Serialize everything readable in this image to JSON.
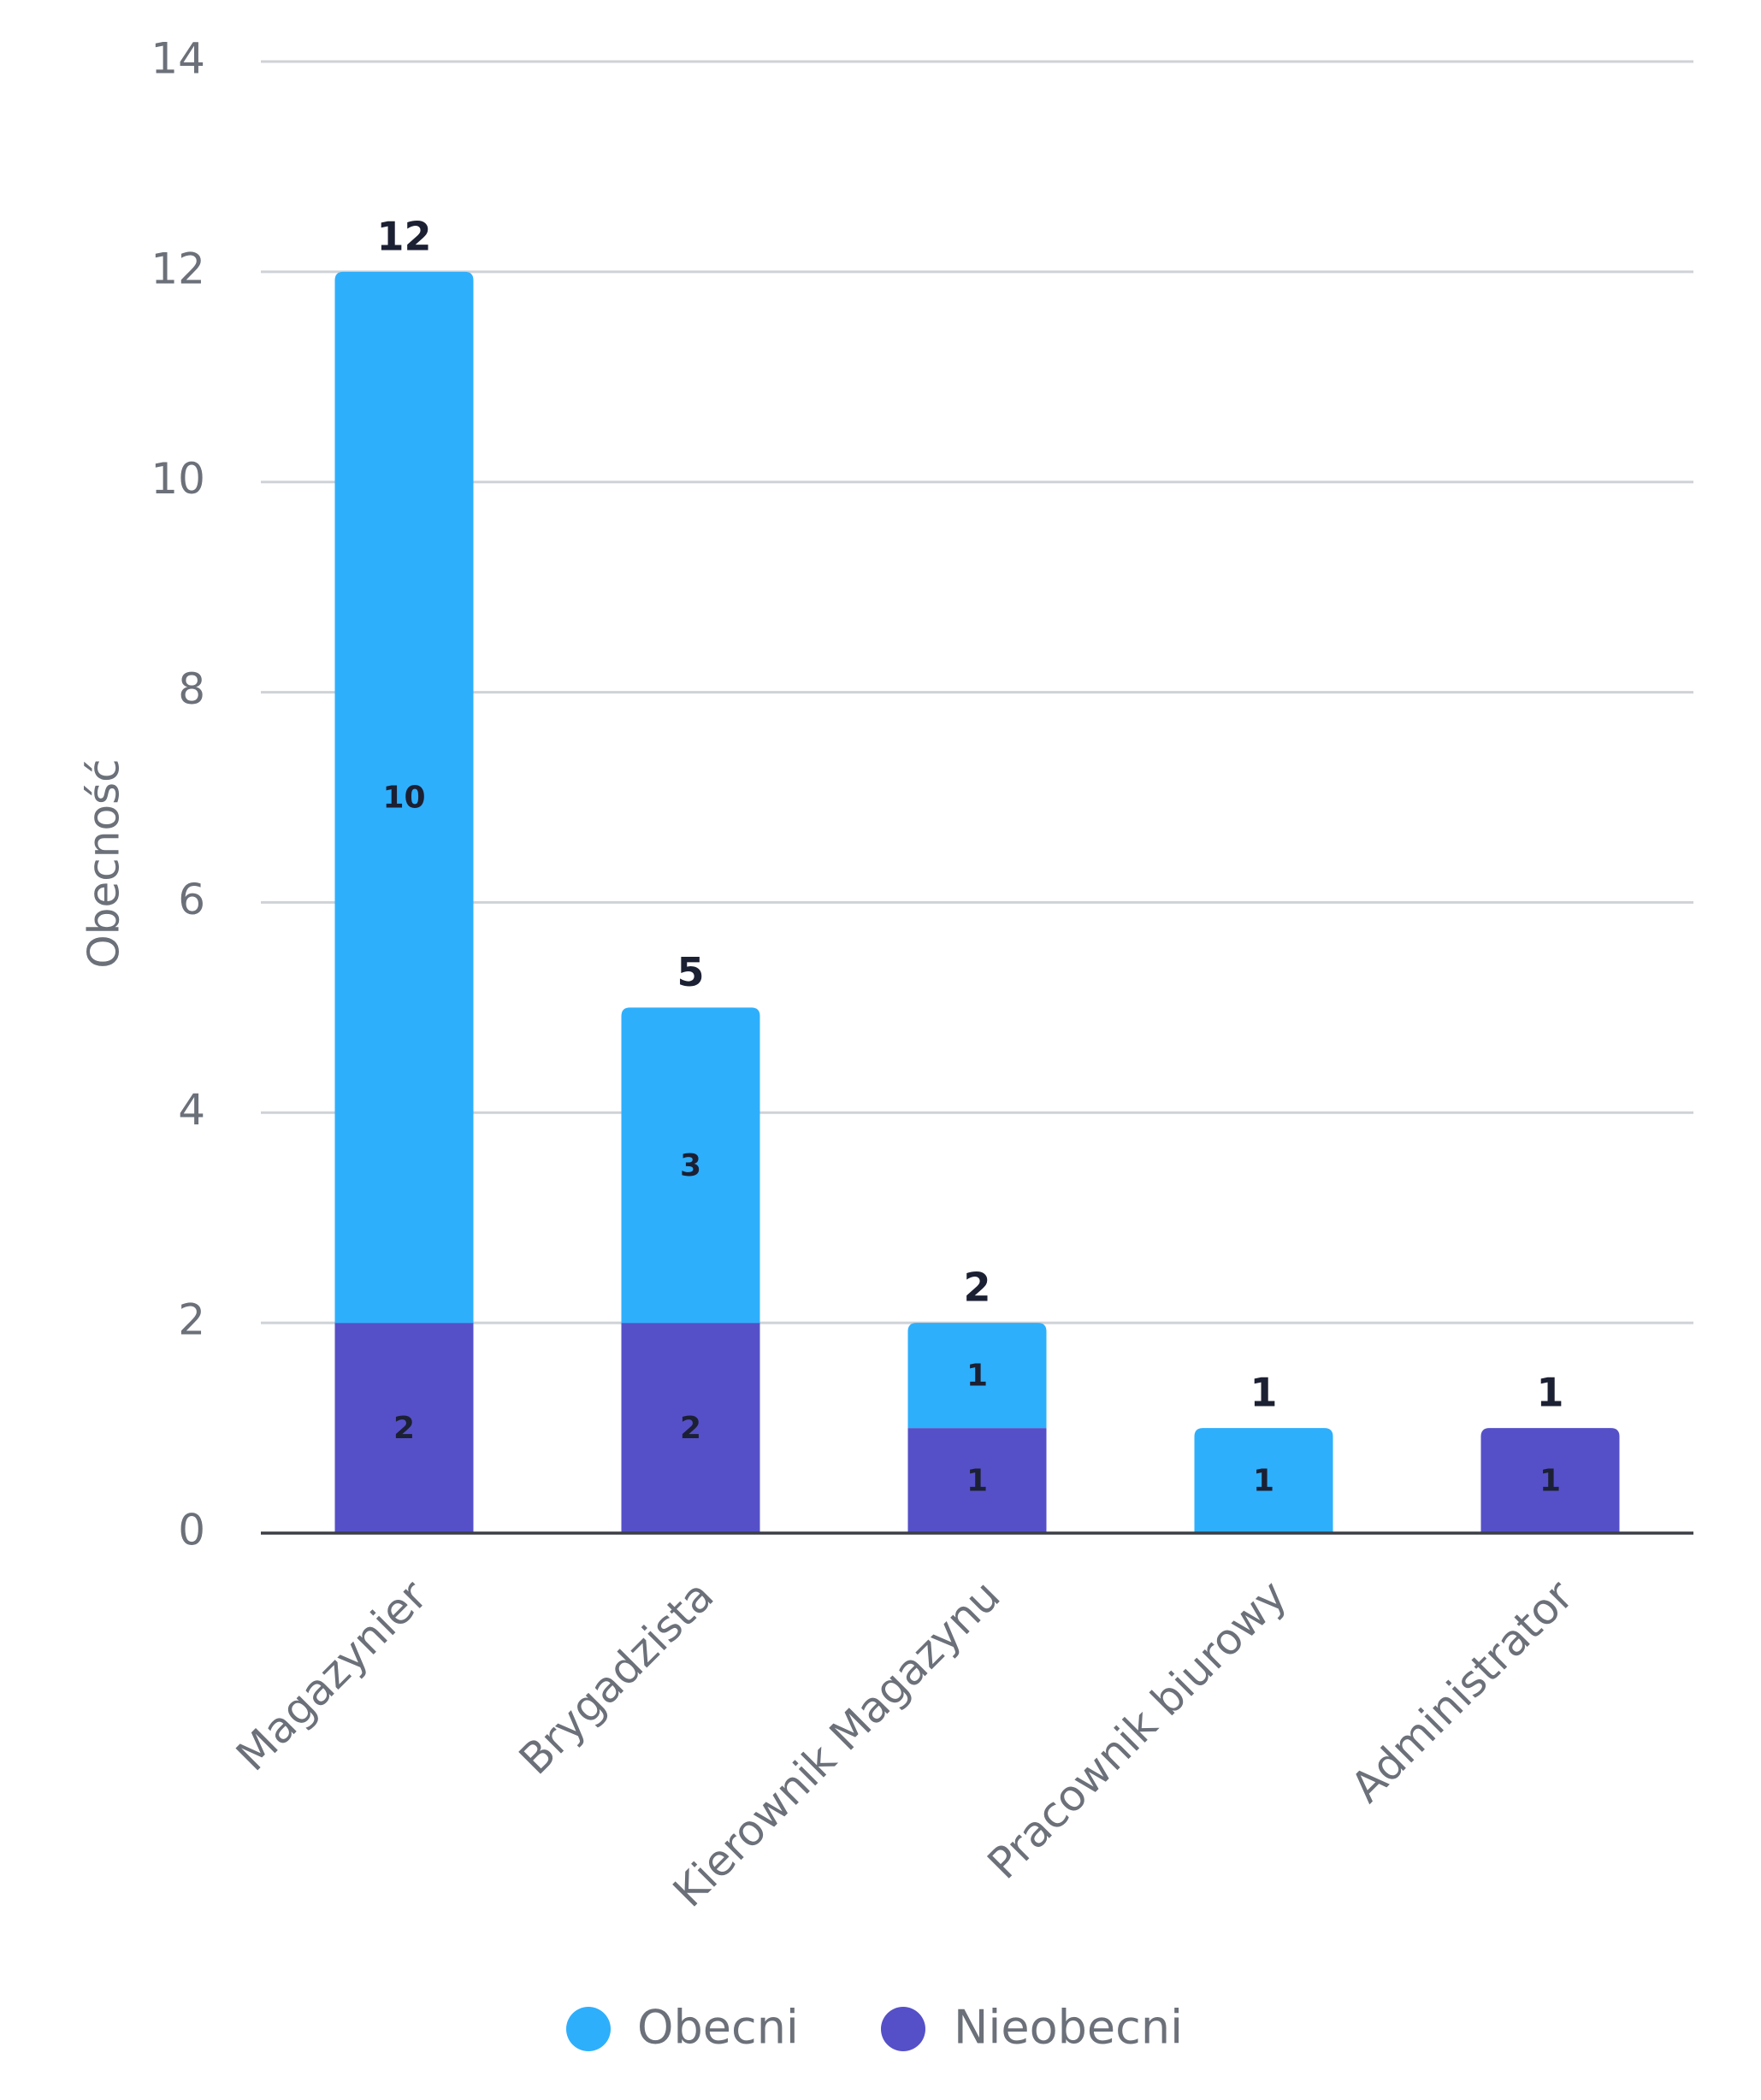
{
  "chart_data": {
    "type": "bar",
    "stacked": true,
    "title": "",
    "xlabel": "",
    "ylabel": "Obecność",
    "ylim": [
      0,
      14
    ],
    "yticks": [
      0,
      2,
      4,
      6,
      8,
      10,
      12,
      14
    ],
    "grid": true,
    "legend_position": "bottom",
    "categories": [
      "Magazynier",
      "Brygadzista",
      "Kierownik Magazynu",
      "Pracownik biurowy",
      "Administrator"
    ],
    "series": [
      {
        "name": "Nieobecni",
        "color": "#5550c8",
        "values": [
          2,
          2,
          1,
          0,
          1
        ]
      },
      {
        "name": "Obecni",
        "color": "#2eaffc",
        "values": [
          10,
          3,
          1,
          1,
          0
        ]
      }
    ],
    "totals": [
      12,
      5,
      2,
      1,
      1
    ],
    "legend_order": [
      "Obecni",
      "Nieobecni"
    ]
  }
}
